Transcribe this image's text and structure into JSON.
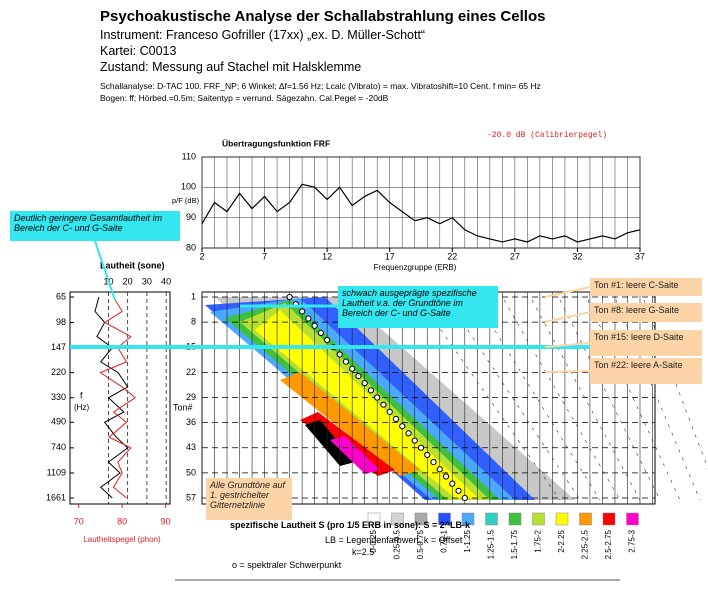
{
  "header": {
    "title": "Psychoakustische Analyse der Schallabstrahlung eines Cellos",
    "instrument": "Instrument: Franceso Gofriller (17xx) „ex. D. Müller-Schott“",
    "kartei": "Kartei: C0013",
    "zustand": "Zustand: Messung auf Stachel mit Halsklemme",
    "analyse": "Schallanalyse: D-TAC 100. FRF_NP; 6 Winkel; Δf=1.56 Hz; Lcalc (Vibrato) = max. Vibratoshift=10 Cent. f min= 65 Hz",
    "bogen": "Bogen: ff; Hörbed.=0.5m; Saitentyp = verrund. Sägezahn. Cal.Pegel = -20dB"
  },
  "frf": {
    "type": "line",
    "title": "Übertragungsfunktion FRF",
    "calibration": "-20.0 dB (Calibrierpegel)",
    "ylabel": "p/F (dB)",
    "xlabel": "Frequenzgruppe (ERB)",
    "color": "#000000",
    "x": [
      2,
      3,
      4,
      5,
      6,
      7,
      8,
      9,
      10,
      11,
      12,
      13,
      14,
      15,
      16,
      17,
      18,
      19,
      20,
      21,
      22,
      23,
      24,
      25,
      26,
      27,
      28,
      29,
      30,
      31,
      32,
      33,
      34,
      35,
      36,
      37
    ],
    "values": [
      88,
      95,
      92,
      98,
      93,
      97,
      92,
      95,
      101,
      100,
      96,
      100,
      94,
      97,
      99,
      95,
      92,
      89,
      90,
      88,
      90,
      86,
      84,
      83,
      82,
      83,
      82,
      84,
      83,
      84,
      82,
      83,
      84,
      83,
      85,
      86
    ],
    "xlim": [
      2,
      37
    ],
    "xticks": [
      2,
      7,
      12,
      17,
      22,
      27,
      32,
      37
    ],
    "ylim": [
      80,
      110
    ],
    "yticks": [
      80,
      90,
      100,
      110
    ],
    "grid": true
  },
  "loudness": {
    "type": "line",
    "title": "Lautheit (sone)",
    "xlabel": "Lautheitspegel (phon)",
    "ylabel_f": "f",
    "ylabel_unit": "(Hz)",
    "f": [
      65,
      82,
      98,
      123,
      147,
      185,
      220,
      277,
      330,
      415,
      490,
      622,
      740,
      932,
      1109,
      1397,
      1661
    ],
    "series": [
      {
        "color": "#000000",
        "axis": "sone",
        "values": [
          5,
          3,
          8,
          4,
          12,
          6,
          15,
          20,
          10,
          18,
          8,
          14,
          20,
          10,
          16,
          6,
          12
        ]
      },
      {
        "color": "#e02020",
        "axis": "phon",
        "values": [
          78,
          80,
          76,
          82,
          79,
          81,
          75,
          80,
          83,
          78,
          81,
          77,
          82,
          79,
          80,
          78,
          81
        ]
      }
    ],
    "xlim_sone": [
      -10,
      42
    ],
    "xticks_sone": [
      10,
      20,
      30,
      40
    ],
    "xlim_phon": [
      68,
      91
    ],
    "xticks_phon": [
      70,
      80,
      90
    ],
    "ylim": [
      65,
      1661
    ],
    "yticks": [
      65,
      98,
      147,
      220,
      330,
      490,
      740,
      1109,
      1661
    ],
    "log_y": true
  },
  "spectrogram": {
    "type": "scatter",
    "ylabel": "Ton#",
    "ylim": [
      1,
      57
    ],
    "yticks": [
      1,
      8,
      15,
      22,
      29,
      36,
      43,
      50,
      57
    ],
    "centroid_ton": [
      1,
      3,
      5,
      7,
      9,
      11,
      13,
      15,
      17,
      19,
      21,
      23,
      25,
      27,
      29,
      31,
      33,
      35,
      37,
      39,
      41,
      43,
      45,
      47,
      49,
      51,
      53,
      55,
      57
    ],
    "centroid_erb": [
      9,
      9.5,
      10,
      10.5,
      11,
      11.5,
      12,
      12.5,
      13,
      13.5,
      14,
      14.5,
      15,
      15.5,
      16,
      16.5,
      17,
      17.5,
      18,
      18.5,
      19,
      19.5,
      20,
      20.5,
      21,
      21.5,
      22,
      22.5,
      23
    ]
  },
  "legend": {
    "items": [
      {
        "label": "0-0.25",
        "color": "#ffffff"
      },
      {
        "label": "0.25-0.5",
        "color": "#d4d4d4"
      },
      {
        "label": "0.5-0.75",
        "color": "#a8a8a8"
      },
      {
        "label": "0.75-1",
        "color": "#2850ff"
      },
      {
        "label": "1-1.25",
        "color": "#4aa8ff"
      },
      {
        "label": "1.25-1.5",
        "color": "#30d0c0"
      },
      {
        "label": "1.5-1.75",
        "color": "#40c040"
      },
      {
        "label": "1.75-2",
        "color": "#b8e030"
      },
      {
        "label": "2-2.25",
        "color": "#ffff00"
      },
      {
        "label": "2.25-2.5",
        "color": "#ff9900"
      },
      {
        "label": "2.5-2.75",
        "color": "#ff0000"
      },
      {
        "label": "2.75-3",
        "color": "#ff00cc"
      }
    ]
  },
  "formula": {
    "line1": "spezifische Lautheit S (pro 1/5 ERB in sone): S = 2^LB-k",
    "line2": "LB = Legendenfarbwert, k = Offset",
    "line3": "k=2.5",
    "line4": "o = spektraler Schwerpunkt"
  },
  "annotations": {
    "gesamt": "Deutlich geringere Gesamtlautheit im Bereich der C- und G-Saite",
    "schwach": "schwach ausgeprägte spezifische Lautheit v.a. der Grundtöne im Bereich der C- und G-Saite",
    "grundtoene": "Alle Grundtöne auf 1. gestrichelter Gitternetzlinie",
    "ton1": "Ton #1: leere C-Saite",
    "ton8": "Ton #8: leere G-Saite",
    "ton15": "Ton #15: leere D-Saite",
    "ton22": "Ton #22: leere A-Saite"
  }
}
